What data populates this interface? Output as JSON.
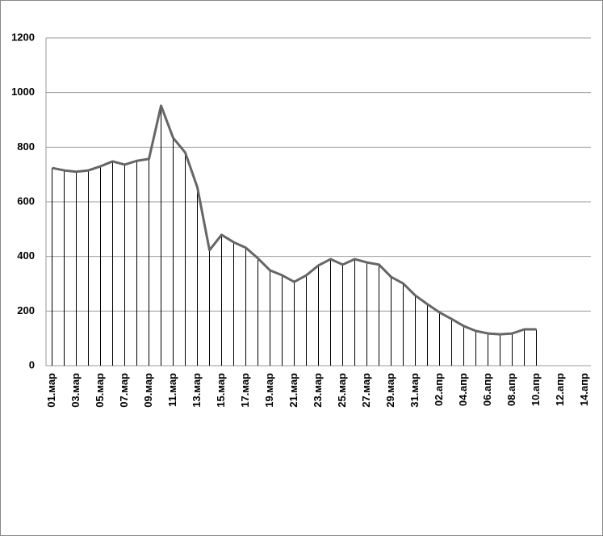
{
  "chart_data": {
    "type": "line",
    "categories": [
      "01.мар",
      null,
      "03.мар",
      null,
      "05.мар",
      null,
      "07.мар",
      null,
      "09.мар",
      null,
      "11.мар",
      null,
      "13.мар",
      null,
      "15.мар",
      null,
      "17.мар",
      null,
      "19.мар",
      null,
      "21.мар",
      null,
      "23.мар",
      null,
      "25.мар",
      null,
      "27.мар",
      null,
      "29.мар",
      null,
      "31.мар",
      null,
      "02.апр",
      null,
      "04.апр",
      null,
      "06.апр",
      null,
      "08.апр",
      null,
      "10.апр",
      null,
      "12.апр",
      null,
      "14.апр"
    ],
    "series": [
      {
        "color": "#666666",
        "values": [
          724,
          715,
          710,
          715,
          730,
          748,
          736,
          750,
          757,
          952,
          834,
          780,
          653,
          423,
          479,
          452,
          432,
          393,
          349,
          331,
          307,
          331,
          367,
          390,
          370,
          390,
          378,
          370,
          325,
          301,
          257,
          225,
          195,
          171,
          145,
          127,
          118,
          115,
          118,
          133,
          133,
          null,
          null,
          null,
          null
        ]
      }
    ],
    "ylim": [
      0,
      1200
    ],
    "yticks": [
      0,
      200,
      400,
      600,
      800,
      1000,
      1200
    ],
    "grid": true,
    "drop_lines": true
  }
}
